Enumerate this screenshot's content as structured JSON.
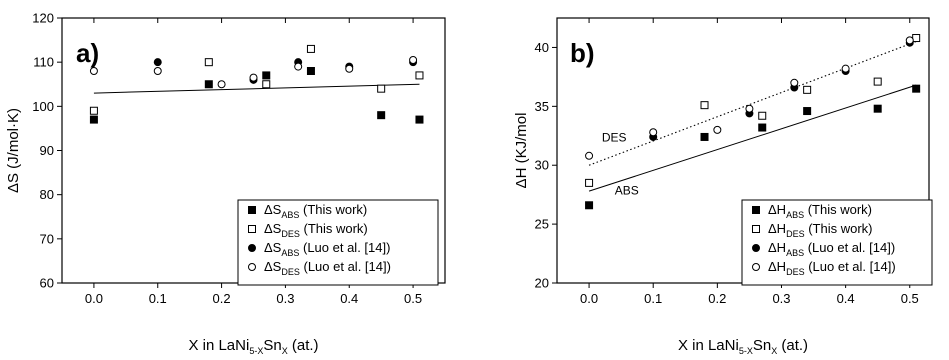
{
  "chart_data": [
    {
      "type": "scatter",
      "panel_label": "a)",
      "xlabel": {
        "main": "X in LaNi",
        "sub1": "5-X",
        "mid": "Sn",
        "sub2": "X",
        "tail": " (at.)"
      },
      "ylabel": "ΔS (J/mol·K)",
      "xlim": [
        -0.05,
        0.55
      ],
      "ylim": [
        60,
        120
      ],
      "xticks": [
        "0.0",
        "0.1",
        "0.2",
        "0.3",
        "0.4",
        "0.5"
      ],
      "yticks": [
        "60",
        "70",
        "80",
        "90",
        "100",
        "110",
        "120"
      ],
      "xtick_values": [
        0.0,
        0.1,
        0.2,
        0.3,
        0.4,
        0.5
      ],
      "ytick_values": [
        60,
        70,
        80,
        90,
        100,
        110,
        120
      ],
      "legend_position": "bottom-right",
      "series": [
        {
          "name": "ΔS",
          "sub": "ABS",
          "suffix": " (This work)",
          "marker": "filled-square",
          "x": [
            0.0,
            0.18,
            0.27,
            0.34,
            0.45,
            0.51
          ],
          "y": [
            97,
            105,
            107,
            108,
            98,
            97
          ]
        },
        {
          "name": "ΔS",
          "sub": "DES",
          "suffix": " (This work)",
          "marker": "open-square",
          "x": [
            0.0,
            0.18,
            0.27,
            0.34,
            0.45,
            0.51
          ],
          "y": [
            99,
            110,
            105,
            113,
            104,
            107
          ]
        },
        {
          "name": "ΔS",
          "sub": "ABS",
          "suffix": " (Luo et al. [14])",
          "marker": "filled-circle",
          "x": [
            0.1,
            0.25,
            0.32,
            0.4,
            0.5
          ],
          "y": [
            110,
            106,
            110,
            109,
            110
          ]
        },
        {
          "name": "ΔS",
          "sub": "DES",
          "suffix": " (Luo et al. [14])",
          "marker": "open-circle",
          "x": [
            0.0,
            0.1,
            0.2,
            0.25,
            0.32,
            0.4,
            0.5
          ],
          "y": [
            108,
            108,
            105,
            106.5,
            109,
            108.5,
            110.5
          ]
        }
      ],
      "fit_lines": [
        {
          "x": [
            0.0,
            0.51
          ],
          "y": [
            103,
            105
          ],
          "style": "solid"
        }
      ]
    },
    {
      "type": "scatter",
      "panel_label": "b)",
      "xlabel": {
        "main": "X in LaNi",
        "sub1": "5-X",
        "mid": "Sn",
        "sub2": "X",
        "tail": " (at.)"
      },
      "ylabel": "ΔH (KJ/mol",
      "xlim": [
        -0.05,
        0.53
      ],
      "ylim": [
        20,
        42.5
      ],
      "xticks": [
        "0.0",
        "0.1",
        "0.2",
        "0.3",
        "0.4",
        "0.5"
      ],
      "yticks": [
        "20",
        "25",
        "30",
        "35",
        "40"
      ],
      "xtick_values": [
        0.0,
        0.1,
        0.2,
        0.3,
        0.4,
        0.5
      ],
      "ytick_values": [
        20,
        25,
        30,
        35,
        40
      ],
      "legend_position": "bottom-right",
      "annotations": [
        {
          "text": "DES",
          "x": 0.02,
          "y": 32.0
        },
        {
          "text": "ABS",
          "x": 0.04,
          "y": 27.5
        }
      ],
      "series": [
        {
          "name": "ΔH",
          "sub": "ABS",
          "suffix": " (This work)",
          "marker": "filled-square",
          "x": [
            0.0,
            0.18,
            0.27,
            0.34,
            0.45,
            0.51
          ],
          "y": [
            26.6,
            32.4,
            33.2,
            34.6,
            34.8,
            36.5
          ]
        },
        {
          "name": "ΔH",
          "sub": "DES",
          "suffix": " (This work)",
          "marker": "open-square",
          "x": [
            0.0,
            0.18,
            0.27,
            0.34,
            0.45,
            0.51
          ],
          "y": [
            28.5,
            35.1,
            34.2,
            36.4,
            37.1,
            40.8
          ]
        },
        {
          "name": "ΔH",
          "sub": "ABS",
          "suffix": " (Luo et al. [14])",
          "marker": "filled-circle",
          "x": [
            0.1,
            0.25,
            0.32,
            0.4,
            0.5
          ],
          "y": [
            32.4,
            34.4,
            36.6,
            38.0,
            40.4
          ]
        },
        {
          "name": "ΔH",
          "sub": "DES",
          "suffix": " (Luo et al. [14])",
          "marker": "open-circle",
          "x": [
            0.0,
            0.1,
            0.2,
            0.25,
            0.32,
            0.4,
            0.5
          ],
          "y": [
            30.8,
            32.8,
            33.0,
            34.8,
            37.0,
            38.2,
            40.6
          ]
        }
      ],
      "fit_lines": [
        {
          "x": [
            0.0,
            0.51
          ],
          "y": [
            27.8,
            36.8
          ],
          "style": "solid"
        },
        {
          "x": [
            0.0,
            0.51
          ],
          "y": [
            30.0,
            40.5
          ],
          "style": "dotted"
        }
      ]
    }
  ]
}
